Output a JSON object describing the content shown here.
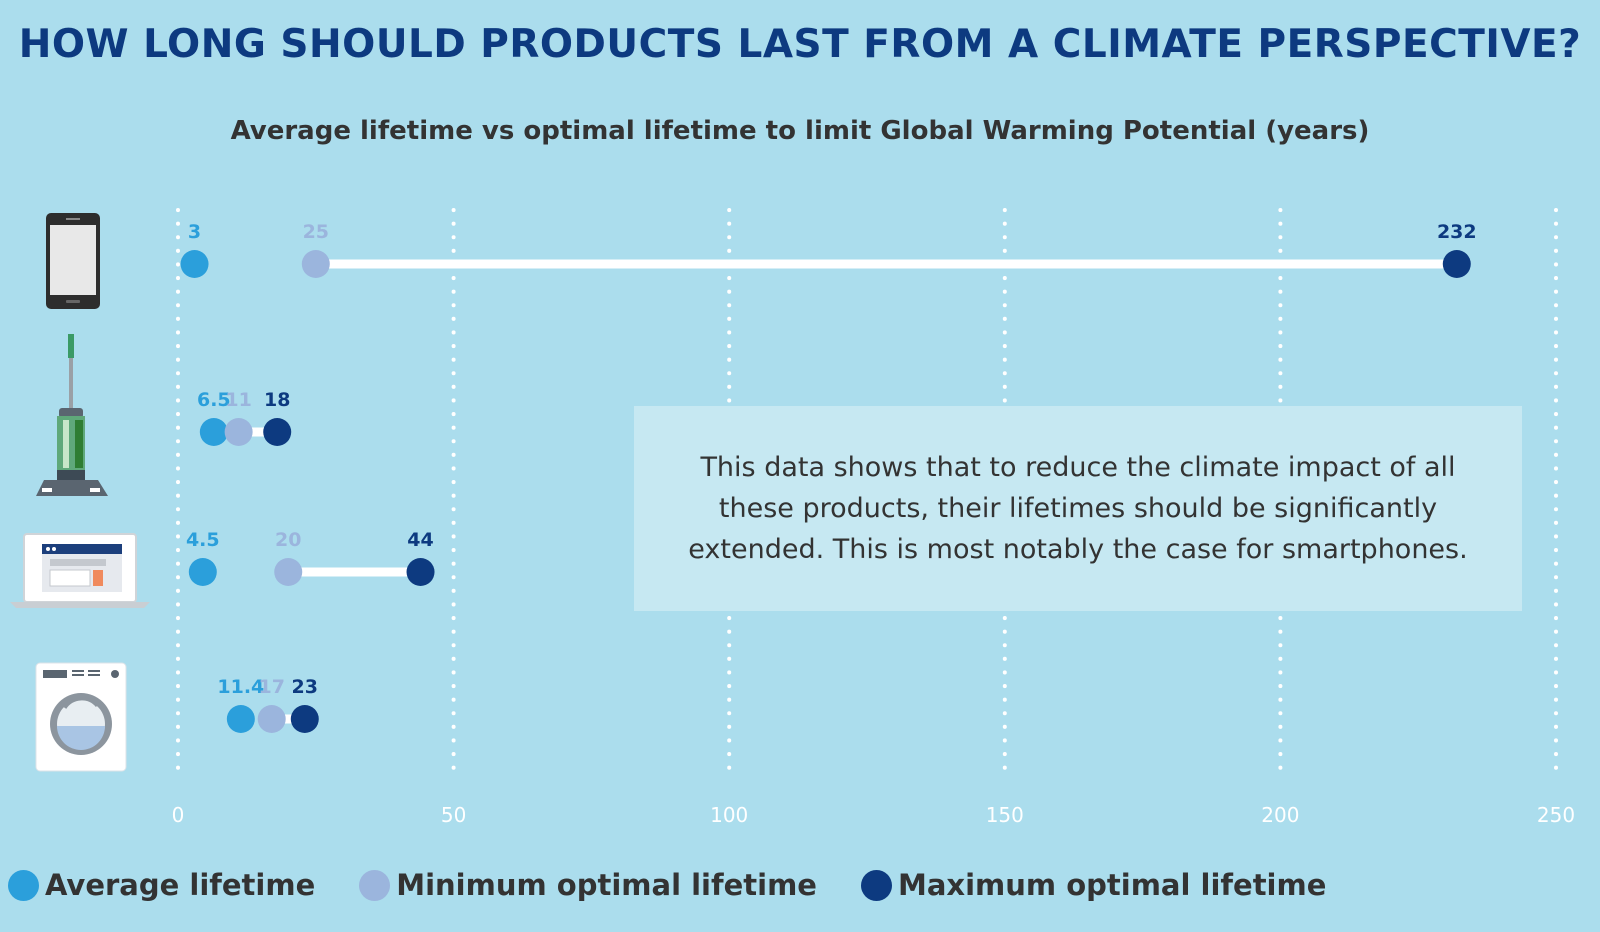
{
  "title": "HOW LONG SHOULD PRODUCTS LAST FROM A CLIMATE PERSPECTIVE?",
  "subtitle": "Average lifetime vs optimal lifetime to limit Global Warming Potential (years)",
  "note": "This data shows that to reduce the climate impact of all these products, their lifetimes should be significantly extended. This is most notably the case for smartphones.",
  "colors": {
    "background": "#abdded",
    "average": "#2b9fdb",
    "minimum": "#9bb5dd",
    "maximum": "#0d3a80",
    "axis_text": "#ffffff",
    "bar": "#ffffff"
  },
  "legend": [
    {
      "key": "average",
      "label": "Average lifetime"
    },
    {
      "key": "minimum",
      "label": "Minimum optimal lifetime"
    },
    {
      "key": "maximum",
      "label": "Maximum optimal lifetime"
    }
  ],
  "chart_data": {
    "type": "dumbbell",
    "title": "Average lifetime vs optimal lifetime to limit Global Warming Potential (years)",
    "xlim": [
      0,
      250
    ],
    "xticks": [
      0,
      50,
      100,
      150,
      200,
      250
    ],
    "grid": "vertical dotted",
    "categories": [
      {
        "product": "smartphone",
        "icon": "smartphone-icon",
        "average": 3,
        "minimum": 25,
        "maximum": 232,
        "labels": {
          "average": "3",
          "minimum": "25",
          "maximum": "232"
        }
      },
      {
        "product": "vacuum cleaner",
        "icon": "vacuum-cleaner-icon",
        "average": 6.5,
        "minimum": 11,
        "maximum": 18,
        "labels": {
          "average": "6.5",
          "minimum": "11",
          "maximum": "18"
        }
      },
      {
        "product": "notebook",
        "icon": "laptop-icon",
        "average": 4.5,
        "minimum": 20,
        "maximum": 44,
        "labels": {
          "average": "4.5",
          "minimum": "20",
          "maximum": "44"
        }
      },
      {
        "product": "washing machine",
        "icon": "washing-machine-icon",
        "average": 11.4,
        "minimum": 17,
        "maximum": 23,
        "labels": {
          "average": "11.4",
          "minimum": "17",
          "maximum": "23"
        }
      }
    ]
  }
}
